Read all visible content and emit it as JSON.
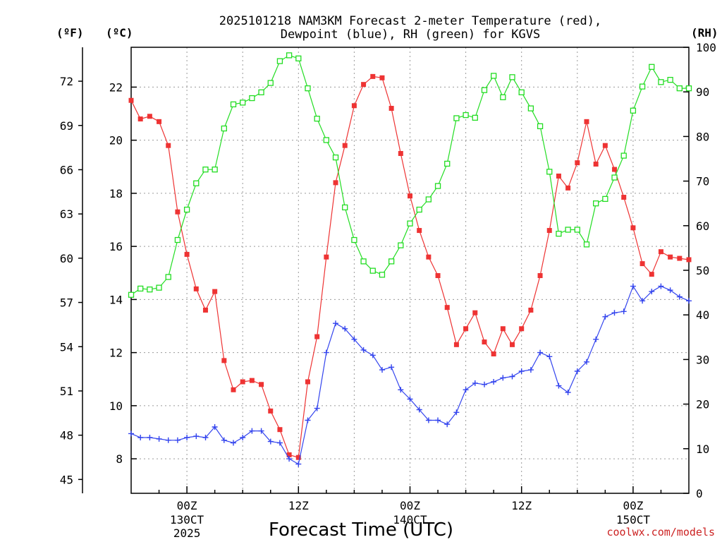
{
  "chart_data": {
    "type": "line",
    "title": "2025101218 NAM3KM Forecast 2-meter Temperature (red),",
    "subtitle": "Dewpoint (blue), RH (green) for KGVS",
    "xlabel": "Forecast Time (UTC)",
    "credit": "coolwx.com/models",
    "units": {
      "fahrenheit": "(ºF)",
      "celsius": "(ºC)",
      "rh": "(RH)"
    },
    "x_hours": [
      0,
      1,
      2,
      3,
      4,
      5,
      6,
      7,
      8,
      9,
      10,
      11,
      12,
      13,
      14,
      15,
      16,
      17,
      18,
      19,
      20,
      21,
      22,
      23,
      24,
      25,
      26,
      27,
      28,
      29,
      30,
      31,
      32,
      33,
      34,
      35,
      36,
      37,
      38,
      39,
      40,
      41,
      42,
      43,
      44,
      45,
      46,
      47,
      48,
      49,
      50,
      51,
      52,
      53,
      54,
      55,
      56,
      57,
      58,
      59,
      60
    ],
    "x_start_hour_utc": 18,
    "xlim": [
      18,
      78
    ],
    "x_ticks": [
      {
        "hour": 24,
        "label": "00Z",
        "sub1": "130CT",
        "sub2": "2025"
      },
      {
        "hour": 36,
        "label": "12Z",
        "sub1": "",
        "sub2": ""
      },
      {
        "hour": 48,
        "label": "00Z",
        "sub1": "140CT",
        "sub2": ""
      },
      {
        "hour": 60,
        "label": "12Z",
        "sub1": "",
        "sub2": ""
      },
      {
        "hour": 72,
        "label": "00Z",
        "sub1": "150CT",
        "sub2": ""
      }
    ],
    "y_left_celsius": {
      "range": [
        6.7,
        23.5
      ],
      "ticks": [
        "8",
        "10",
        "12",
        "14",
        "16",
        "18",
        "20",
        "22"
      ]
    },
    "y_left_fahrenheit": {
      "ticks": [
        "45",
        "48",
        "51",
        "54",
        "57",
        "60",
        "63",
        "66",
        "69",
        "72"
      ]
    },
    "y_right_rh": {
      "range": [
        0,
        100
      ],
      "ticks": [
        "0",
        "10",
        "20",
        "30",
        "40",
        "50",
        "60",
        "70",
        "80",
        "90",
        "100"
      ]
    },
    "series": [
      {
        "name": "2-meter Temperature",
        "axis": "celsius",
        "color": "#ee3333",
        "marker": "filled-square",
        "values": [
          21.5,
          20.8,
          20.9,
          20.7,
          19.8,
          17.3,
          15.7,
          14.4,
          13.6,
          14.3,
          11.7,
          10.6,
          10.9,
          10.95,
          10.8,
          9.8,
          9.1,
          8.15,
          8.05,
          10.9,
          12.6,
          15.6,
          18.4,
          19.8,
          21.3,
          22.1,
          22.4,
          22.35,
          21.2,
          19.5,
          17.9,
          16.6,
          15.6,
          14.9,
          13.7,
          12.3,
          12.9,
          13.5,
          12.4,
          11.95,
          12.9,
          12.3,
          12.9,
          13.6,
          14.9,
          16.6,
          18.65,
          18.2,
          19.15,
          20.7,
          19.1,
          19.8,
          18.9,
          17.85,
          16.7,
          15.35,
          14.95,
          15.8,
          15.6,
          15.55,
          15.5
        ]
      },
      {
        "name": "Dewpoint",
        "axis": "celsius",
        "color": "#3344ee",
        "marker": "plus",
        "values": [
          8.95,
          8.8,
          8.8,
          8.75,
          8.7,
          8.7,
          8.8,
          8.85,
          8.8,
          9.2,
          8.7,
          8.6,
          8.8,
          9.05,
          9.05,
          8.65,
          8.6,
          8.0,
          7.8,
          9.45,
          9.9,
          12.0,
          13.1,
          12.9,
          12.5,
          12.1,
          11.9,
          11.35,
          11.45,
          10.6,
          10.25,
          9.85,
          9.45,
          9.45,
          9.3,
          9.75,
          10.6,
          10.85,
          10.8,
          10.9,
          11.05,
          11.1,
          11.3,
          11.35,
          12.0,
          11.85,
          10.75,
          10.5,
          11.3,
          11.65,
          12.5,
          13.35,
          13.5,
          13.55,
          14.5,
          13.95,
          14.3,
          14.5,
          14.35,
          14.1,
          13.95
        ]
      },
      {
        "name": "RH",
        "axis": "rh",
        "color": "#22dd22",
        "marker": "open-square",
        "values": [
          44.5,
          45.9,
          45.7,
          46.1,
          48.5,
          56.8,
          63.6,
          69.5,
          72.6,
          72.6,
          81.8,
          87.2,
          87.6,
          88.6,
          89.9,
          92.0,
          96.9,
          98.2,
          97.5,
          90.8,
          84.0,
          79.2,
          75.3,
          64.1,
          56.8,
          52.0,
          49.9,
          49.0,
          52.0,
          55.6,
          60.5,
          63.6,
          65.9,
          68.9,
          73.9,
          84.1,
          84.8,
          84.2,
          90.4,
          93.6,
          88.8,
          93.3,
          89.9,
          86.3,
          82.3,
          72.1,
          58.2,
          59.1,
          59.1,
          55.8,
          65.0,
          66.0,
          70.8,
          75.7,
          85.8,
          91.2,
          95.6,
          92.2,
          92.7,
          90.8,
          90.8
        ]
      }
    ]
  }
}
